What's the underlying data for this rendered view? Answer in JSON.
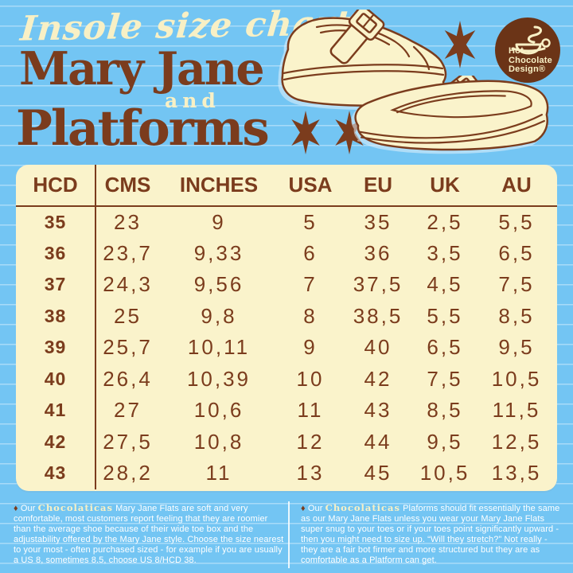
{
  "header": {
    "script_title": "Insole size chart",
    "title_line1": "Mary Jane",
    "title_and": "and",
    "title_line2": "Platforms"
  },
  "logo": {
    "name": "Hot Chocolate Design",
    "line1": "Hot",
    "line2": "Chocolate",
    "line3": "Design®"
  },
  "icons": {
    "star": "6-point-sparkle-star",
    "diamond_bullet": "♦",
    "logo_cup": "steaming-chocolate-cup",
    "shoes": "mary-jane-platform-shoes"
  },
  "colors": {
    "background_blue": "#73c5f3",
    "panel_cream": "#faf3cb",
    "text_brown": "#7b3c1d",
    "logo_brown": "#6b3417",
    "footnote_white": "#ffffff",
    "accent_cream": "#f8f0c5"
  },
  "size_chart": {
    "columns": [
      "HCD",
      "CMS",
      "INCHES",
      "USA",
      "EU",
      "UK",
      "AU"
    ],
    "rows": [
      [
        "35",
        "23",
        "9",
        "5",
        "35",
        "2,5",
        "5,5"
      ],
      [
        "36",
        "23,7",
        "9,33",
        "6",
        "36",
        "3,5",
        "6,5"
      ],
      [
        "37",
        "24,3",
        "9,56",
        "7",
        "37,5",
        "4,5",
        "7,5"
      ],
      [
        "38",
        "25",
        "9,8",
        "8",
        "38,5",
        "5,5",
        "8,5"
      ],
      [
        "39",
        "25,7",
        "10,11",
        "9",
        "40",
        "6,5",
        "9,5"
      ],
      [
        "40",
        "26,4",
        "10,39",
        "10",
        "42",
        "7,5",
        "10,5"
      ],
      [
        "41",
        "27",
        "10,6",
        "11",
        "43",
        "8,5",
        "11,5"
      ],
      [
        "42",
        "27,5",
        "10,8",
        "12",
        "44",
        "9,5",
        "12,5"
      ],
      [
        "43",
        "28,2",
        "11",
        "13",
        "45",
        "10,5",
        "13,5"
      ]
    ]
  },
  "footnotes": {
    "left": {
      "bullet": "♦",
      "prefix": "Our",
      "brand_word": "Chocolaticas",
      "text": "Mary Jane Flats are soft and very comfortable, most customers report feeling that they are roomier than the average shoe because of their wide toe box and the adjustability offered by the Mary Jane style. Choose the size nearest to your most - often purchased sized - for example if you are usually a US 8, sometimes 8.5, choose US 8/HCD 38."
    },
    "right": {
      "bullet": "♦",
      "prefix": "Our",
      "brand_word": "Chocolaticas",
      "text": "Plaforms should fit essentially the same as our Mary Jane Flats unless you wear your Mary Jane Flats super snug to your toes or if your toes point significantly upward - then you might need to size up. “Will they stretch?” Not really - they are a fair bot firmer and more structured but they are as comfortable as a Platform can get."
    }
  }
}
